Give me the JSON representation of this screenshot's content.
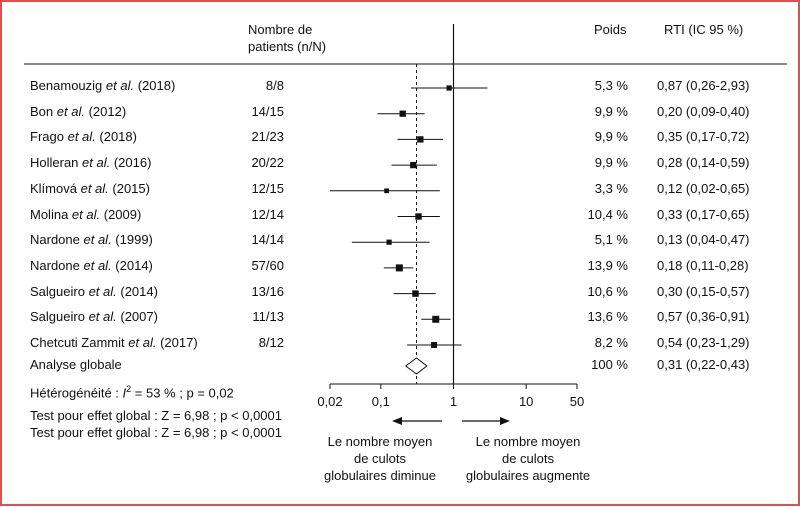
{
  "chart_data": {
    "type": "forest",
    "header": {
      "patients": [
        "Nombre de",
        "patients (n/N)"
      ],
      "weight": "Poids",
      "rti": "RTI (IC 95 %)"
    },
    "studies": [
      {
        "author": "Benamouzig",
        "suffix": " (2018)",
        "n": "8/8",
        "weight": "5,3 %",
        "ci_text": "0,87 (0,26-2,93)",
        "est": 0.87,
        "lo": 0.26,
        "hi": 2.93,
        "w": 5.3
      },
      {
        "author": "Bon",
        "suffix": " (2012)",
        "n": "14/15",
        "weight": "9,9 %",
        "ci_text": "0,20 (0,09-0,40)",
        "est": 0.2,
        "lo": 0.09,
        "hi": 0.4,
        "w": 9.9
      },
      {
        "author": "Frago",
        "suffix": " (2018)",
        "n": "21/23",
        "weight": "9,9 %",
        "ci_text": "0,35 (0,17-0,72)",
        "est": 0.35,
        "lo": 0.17,
        "hi": 0.72,
        "w": 9.9
      },
      {
        "author": "Holleran",
        "suffix": " (2016)",
        "n": "20/22",
        "weight": "9,9 %",
        "ci_text": "0,28 (0,14-0,59)",
        "est": 0.28,
        "lo": 0.14,
        "hi": 0.59,
        "w": 9.9
      },
      {
        "author": "Klímová",
        "suffix": " (2015)",
        "n": "12/15",
        "weight": "3,3 %",
        "ci_text": "0,12 (0,02-0,65)",
        "est": 0.12,
        "lo": 0.02,
        "hi": 0.65,
        "w": 3.3
      },
      {
        "author": "Molina",
        "suffix": " (2009)",
        "n": "12/14",
        "weight": "10,4 %",
        "ci_text": "0,33 (0,17-0,65)",
        "est": 0.33,
        "lo": 0.17,
        "hi": 0.65,
        "w": 10.4
      },
      {
        "author": "Nardone",
        "suffix": " (1999)",
        "n": "14/14",
        "weight": "5,1 %",
        "ci_text": "0,13 (0,04-0,47)",
        "est": 0.13,
        "lo": 0.04,
        "hi": 0.47,
        "w": 5.1
      },
      {
        "author": "Nardone",
        "suffix": " (2014)",
        "n": "57/60",
        "weight": "13,9 %",
        "ci_text": "0,18 (0,11-0,28)",
        "est": 0.18,
        "lo": 0.11,
        "hi": 0.28,
        "w": 13.9
      },
      {
        "author": "Salgueiro",
        "suffix": " (2014)",
        "n": "13/16",
        "weight": "10,6 %",
        "ci_text": "0,30 (0,15-0,57)",
        "est": 0.3,
        "lo": 0.15,
        "hi": 0.57,
        "w": 10.6
      },
      {
        "author": "Salgueiro",
        "suffix": " (2007)",
        "n": "11/13",
        "weight": "13,6 %",
        "ci_text": "0,57 (0,36-0,91)",
        "est": 0.57,
        "lo": 0.36,
        "hi": 0.91,
        "w": 13.6
      },
      {
        "author": "Chetcuti Zammit",
        "suffix": " (2017)",
        "n": "8/12",
        "weight": "8,2 %",
        "ci_text": "0,54 (0,23-1,29)",
        "est": 0.54,
        "lo": 0.23,
        "hi": 1.29,
        "w": 8.2
      }
    ],
    "et_al": "et al.",
    "overall": {
      "label": "Analyse globale",
      "weight": "100 %",
      "ci_text": "0,31 (0,22-0,43)",
      "est": 0.31,
      "lo": 0.22,
      "hi": 0.43
    },
    "heterogeneity": {
      "prefix": "Hétérogénéité : ",
      "i": "I",
      "sup": "2",
      "rest": " = 53 % ; p = 0,02"
    },
    "tests": [
      "Test pour effet global : Z = 6,98 ; p < 0,0001",
      "Test pour effet global : Z = 6,98 ; p < 0,0001"
    ],
    "x_axis": {
      "scale": "log",
      "ticks": [
        0.02,
        0.1,
        1,
        10,
        50
      ],
      "tick_labels": [
        "0,02",
        "0,1",
        "1",
        "10",
        "50"
      ],
      "xlim": [
        0.02,
        50
      ],
      "reference": 1
    },
    "arrow_labels": {
      "left": [
        "Le nombre moyen",
        "de culots",
        "globulaires diminue"
      ],
      "right": [
        "Le nombre moyen",
        "de culots",
        "globulaires augmente"
      ]
    },
    "colors": {
      "frame": "#d9534f",
      "ink": "#111111"
    }
  }
}
